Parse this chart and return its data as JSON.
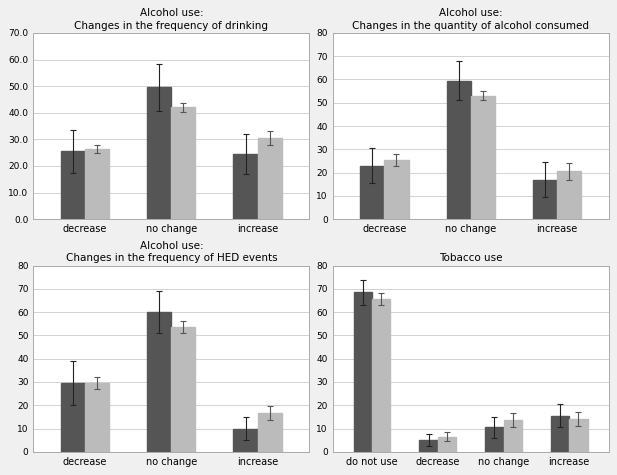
{
  "subplots": [
    {
      "title": "Alcohol use:\nChanges in the frequency of drinking",
      "categories": [
        "decrease",
        "no change",
        "increase"
      ],
      "dark_values": [
        25.5,
        49.5,
        24.5
      ],
      "light_values": [
        26.5,
        42.0,
        30.5
      ],
      "dark_errors": [
        8.0,
        9.0,
        7.5
      ],
      "light_errors": [
        1.5,
        1.8,
        2.5
      ],
      "ylim": [
        0,
        70
      ],
      "yticks": [
        0.0,
        10.0,
        20.0,
        30.0,
        40.0,
        50.0,
        60.0,
        70.0
      ],
      "ytick_labels": [
        "0.0",
        "10.0",
        "20.0",
        "30.0",
        "40.0",
        "50.0",
        "60.0",
        "70.0"
      ]
    },
    {
      "title": "Alcohol use:\nChanges in the quantity of alcohol consumed",
      "categories": [
        "decrease",
        "no change",
        "increase"
      ],
      "dark_values": [
        23.0,
        59.5,
        17.0
      ],
      "light_values": [
        25.5,
        53.0,
        20.5
      ],
      "dark_errors": [
        7.5,
        8.5,
        7.5
      ],
      "light_errors": [
        2.5,
        2.0,
        3.5
      ],
      "ylim": [
        0,
        80
      ],
      "yticks": [
        0,
        10,
        20,
        30,
        40,
        50,
        60,
        70,
        80
      ],
      "ytick_labels": [
        "0",
        "10",
        "20",
        "30",
        "40",
        "50",
        "60",
        "70",
        "80"
      ]
    },
    {
      "title": "Alcohol use:\nChanges in the frequency of HED events",
      "categories": [
        "decrease",
        "no change",
        "increase"
      ],
      "dark_values": [
        29.5,
        60.0,
        10.0
      ],
      "light_values": [
        29.5,
        53.5,
        16.5
      ],
      "dark_errors": [
        9.5,
        9.0,
        5.0
      ],
      "light_errors": [
        2.5,
        2.5,
        3.0
      ],
      "ylim": [
        0,
        80
      ],
      "yticks": [
        0,
        10,
        20,
        30,
        40,
        50,
        60,
        70,
        80
      ],
      "ytick_labels": [
        "0",
        "10",
        "20",
        "30",
        "40",
        "50",
        "60",
        "70",
        "80"
      ]
    },
    {
      "title": "Tobacco use",
      "categories": [
        "do not use",
        "decrease",
        "no change",
        "increase"
      ],
      "dark_values": [
        68.5,
        5.0,
        10.5,
        15.5
      ],
      "light_values": [
        65.5,
        6.5,
        13.5,
        14.0
      ],
      "dark_errors": [
        5.5,
        2.5,
        4.5,
        5.0
      ],
      "light_errors": [
        2.5,
        2.0,
        3.0,
        3.0
      ],
      "ylim": [
        0,
        80
      ],
      "yticks": [
        0,
        10,
        20,
        30,
        40,
        50,
        60,
        70,
        80
      ],
      "ytick_labels": [
        "0",
        "10",
        "20",
        "30",
        "40",
        "50",
        "60",
        "70",
        "80"
      ]
    }
  ],
  "dark_color": "#555555",
  "light_color": "#bbbbbb",
  "bar_width": 0.28,
  "background_color": "#f0f0f0",
  "panel_color": "#ffffff",
  "grid_color": "#cccccc",
  "title_fontsize": 7.5,
  "tick_fontsize": 6.5,
  "cat_fontsize": 7
}
